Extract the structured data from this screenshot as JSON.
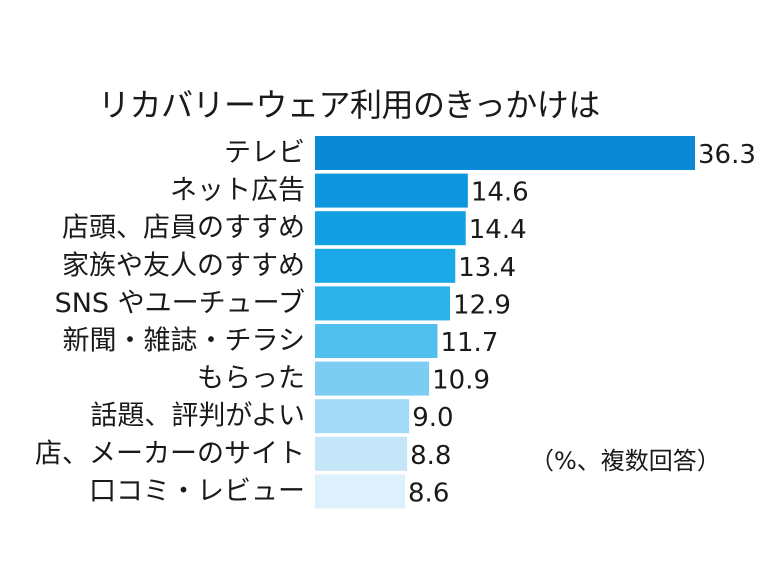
{
  "chart_data": {
    "type": "bar",
    "orientation": "horizontal",
    "title": "リカバリーウェア利用のきっかけは",
    "note": "（%、複数回答）",
    "categories": [
      "テレビ",
      "ネット広告",
      "店頭、店員のすすめ",
      "家族や友人のすすめ",
      "SNS やユーチューブ",
      "新聞・雑誌・チラシ",
      "もらった",
      "話題、評判がよい",
      "店、メーカーのサイト",
      "口コミ・レビュー"
    ],
    "values": [
      36.3,
      14.6,
      14.4,
      13.4,
      12.9,
      11.7,
      10.9,
      9.0,
      8.8,
      8.6
    ],
    "value_labels": [
      "36.3",
      "14.6",
      "14.4",
      "13.4",
      "12.9",
      "11.7",
      "10.9",
      "9.0",
      "8.8",
      "8.6"
    ],
    "xlim": [
      0,
      36.3
    ],
    "grid": false,
    "legend": "none",
    "colors": [
      "#0a8ad6",
      "#0d96dd",
      "#12a0e2",
      "#1aa9e6",
      "#2db3ea",
      "#52c0ee",
      "#7ccdf1",
      "#a3daf5",
      "#c4e6f8",
      "#ddf0fb"
    ]
  }
}
